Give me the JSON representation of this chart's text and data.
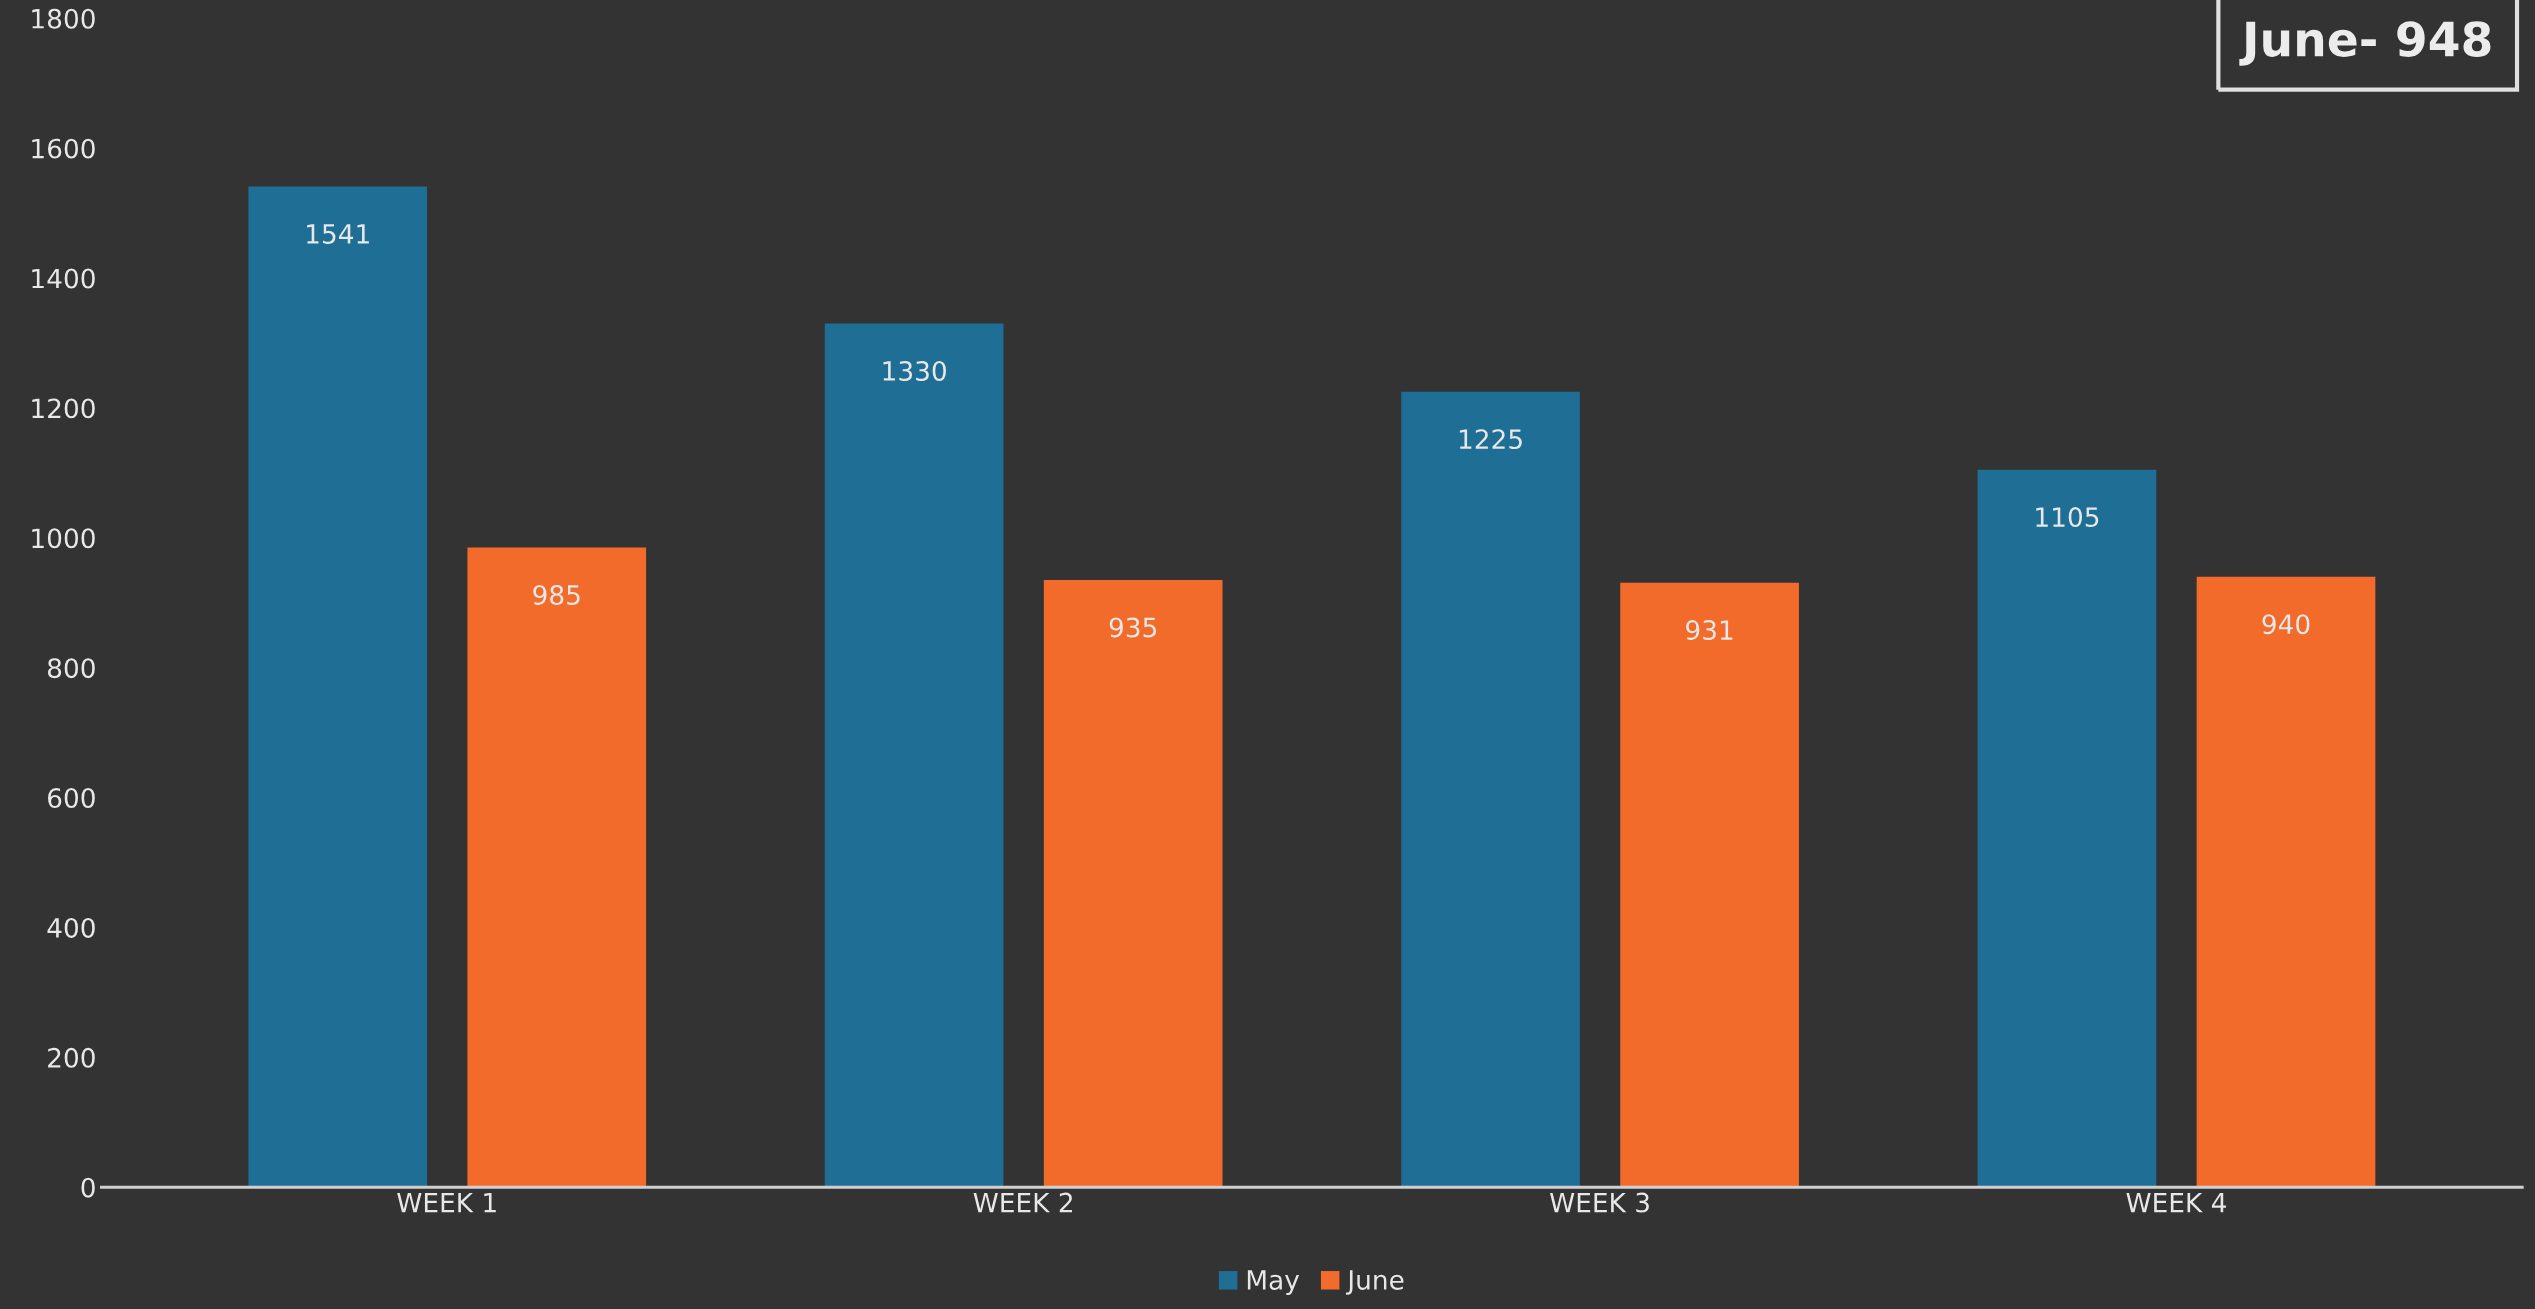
{
  "chart_data": {
    "type": "bar",
    "categories": [
      "WEEK 1",
      "WEEK 2",
      "WEEK 3",
      "WEEK 4"
    ],
    "series": [
      {
        "name": "May",
        "color": "#1f6e96",
        "values": [
          1541,
          1330,
          1225,
          1105
        ]
      },
      {
        "name": "June",
        "color": "#f26b2a",
        "values": [
          985,
          935,
          931,
          940
        ]
      }
    ],
    "ylim": [
      0,
      1800
    ],
    "yticks": [
      0,
      200,
      400,
      600,
      800,
      1000,
      1200,
      1400,
      1600,
      1800
    ],
    "data_labels": true,
    "grid": false,
    "legend": "bottom",
    "annotations": [
      "June- 948"
    ]
  }
}
